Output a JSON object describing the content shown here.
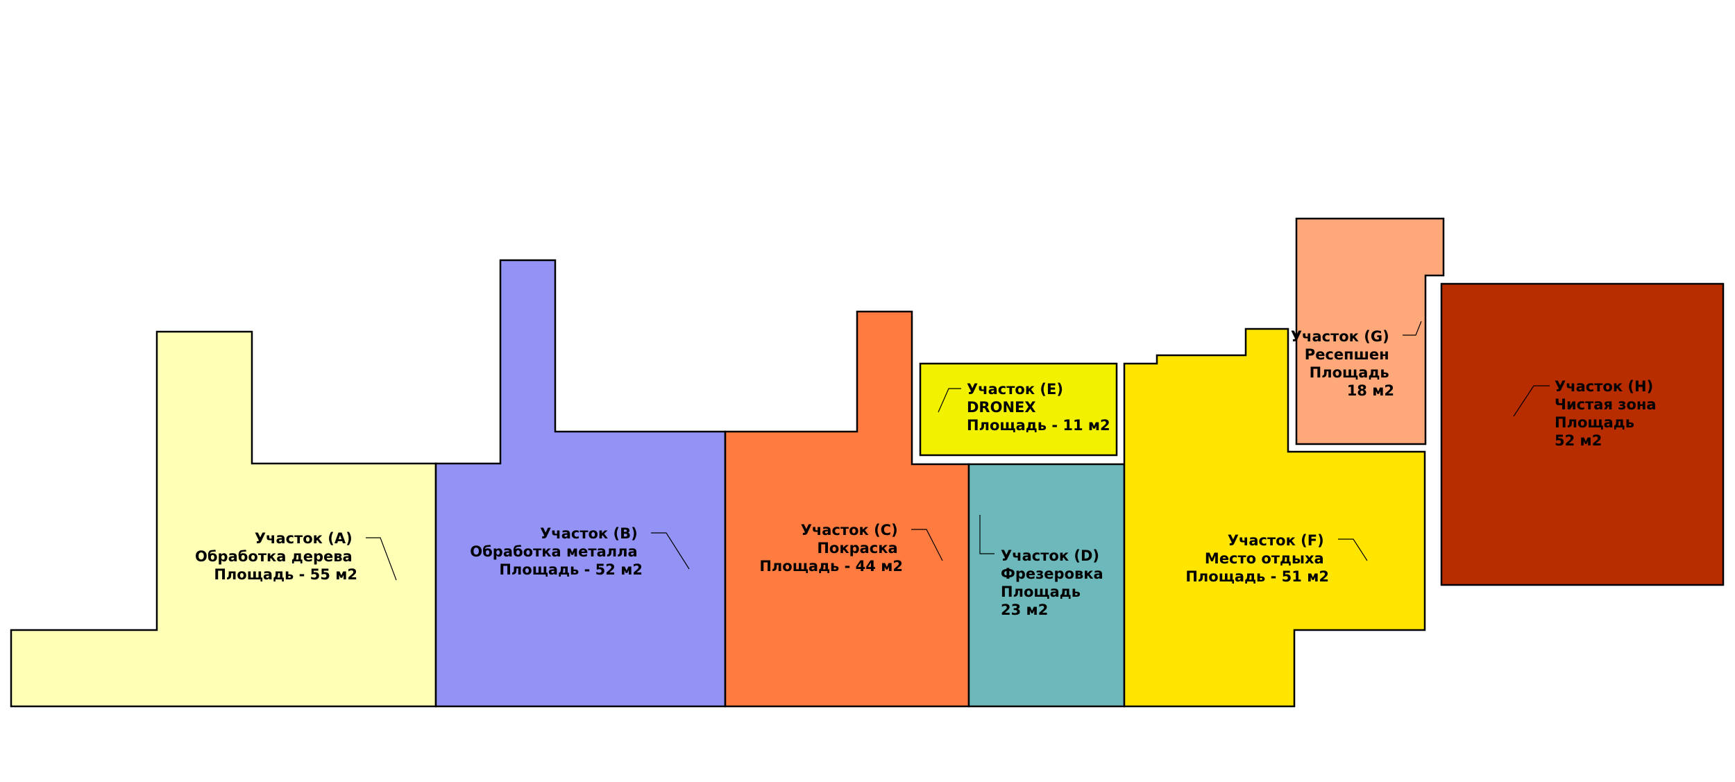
{
  "zones": [
    {
      "id": "A",
      "color": "#FFFFB5",
      "lines": [
        "Участок (A)",
        "Обработка дерева",
        "Площадь - 55 м2"
      ]
    },
    {
      "id": "B",
      "color": "#9393F5",
      "lines": [
        "Участок (B)",
        "Обработка металла",
        "Площадь - 52 м2"
      ]
    },
    {
      "id": "C",
      "color": "#FF7B3F",
      "lines": [
        "Участок (C)",
        "Покраска",
        "Площадь - 44 м2"
      ]
    },
    {
      "id": "D",
      "color": "#6DB8BA",
      "lines": [
        "Участок (D)",
        "Фрезеровка",
        "Площадь",
        "23 м2"
      ]
    },
    {
      "id": "E",
      "color": "#F2F200",
      "lines": [
        "Участок (E)",
        "DRONEX",
        "Площадь - 11 м2"
      ]
    },
    {
      "id": "F",
      "color": "#FFE500",
      "lines": [
        "Участок (F)",
        "Место отдыха",
        "Площадь - 51 м2"
      ]
    },
    {
      "id": "G",
      "color": "#FFA879",
      "lines": [
        "Участок (G)",
        "Ресепшен",
        "Площадь",
        "18 м2"
      ]
    },
    {
      "id": "H",
      "color": "#B82D00",
      "lines": [
        "Участок (H)",
        "Чистая зона",
        "Площадь",
        "52 м2"
      ]
    }
  ]
}
